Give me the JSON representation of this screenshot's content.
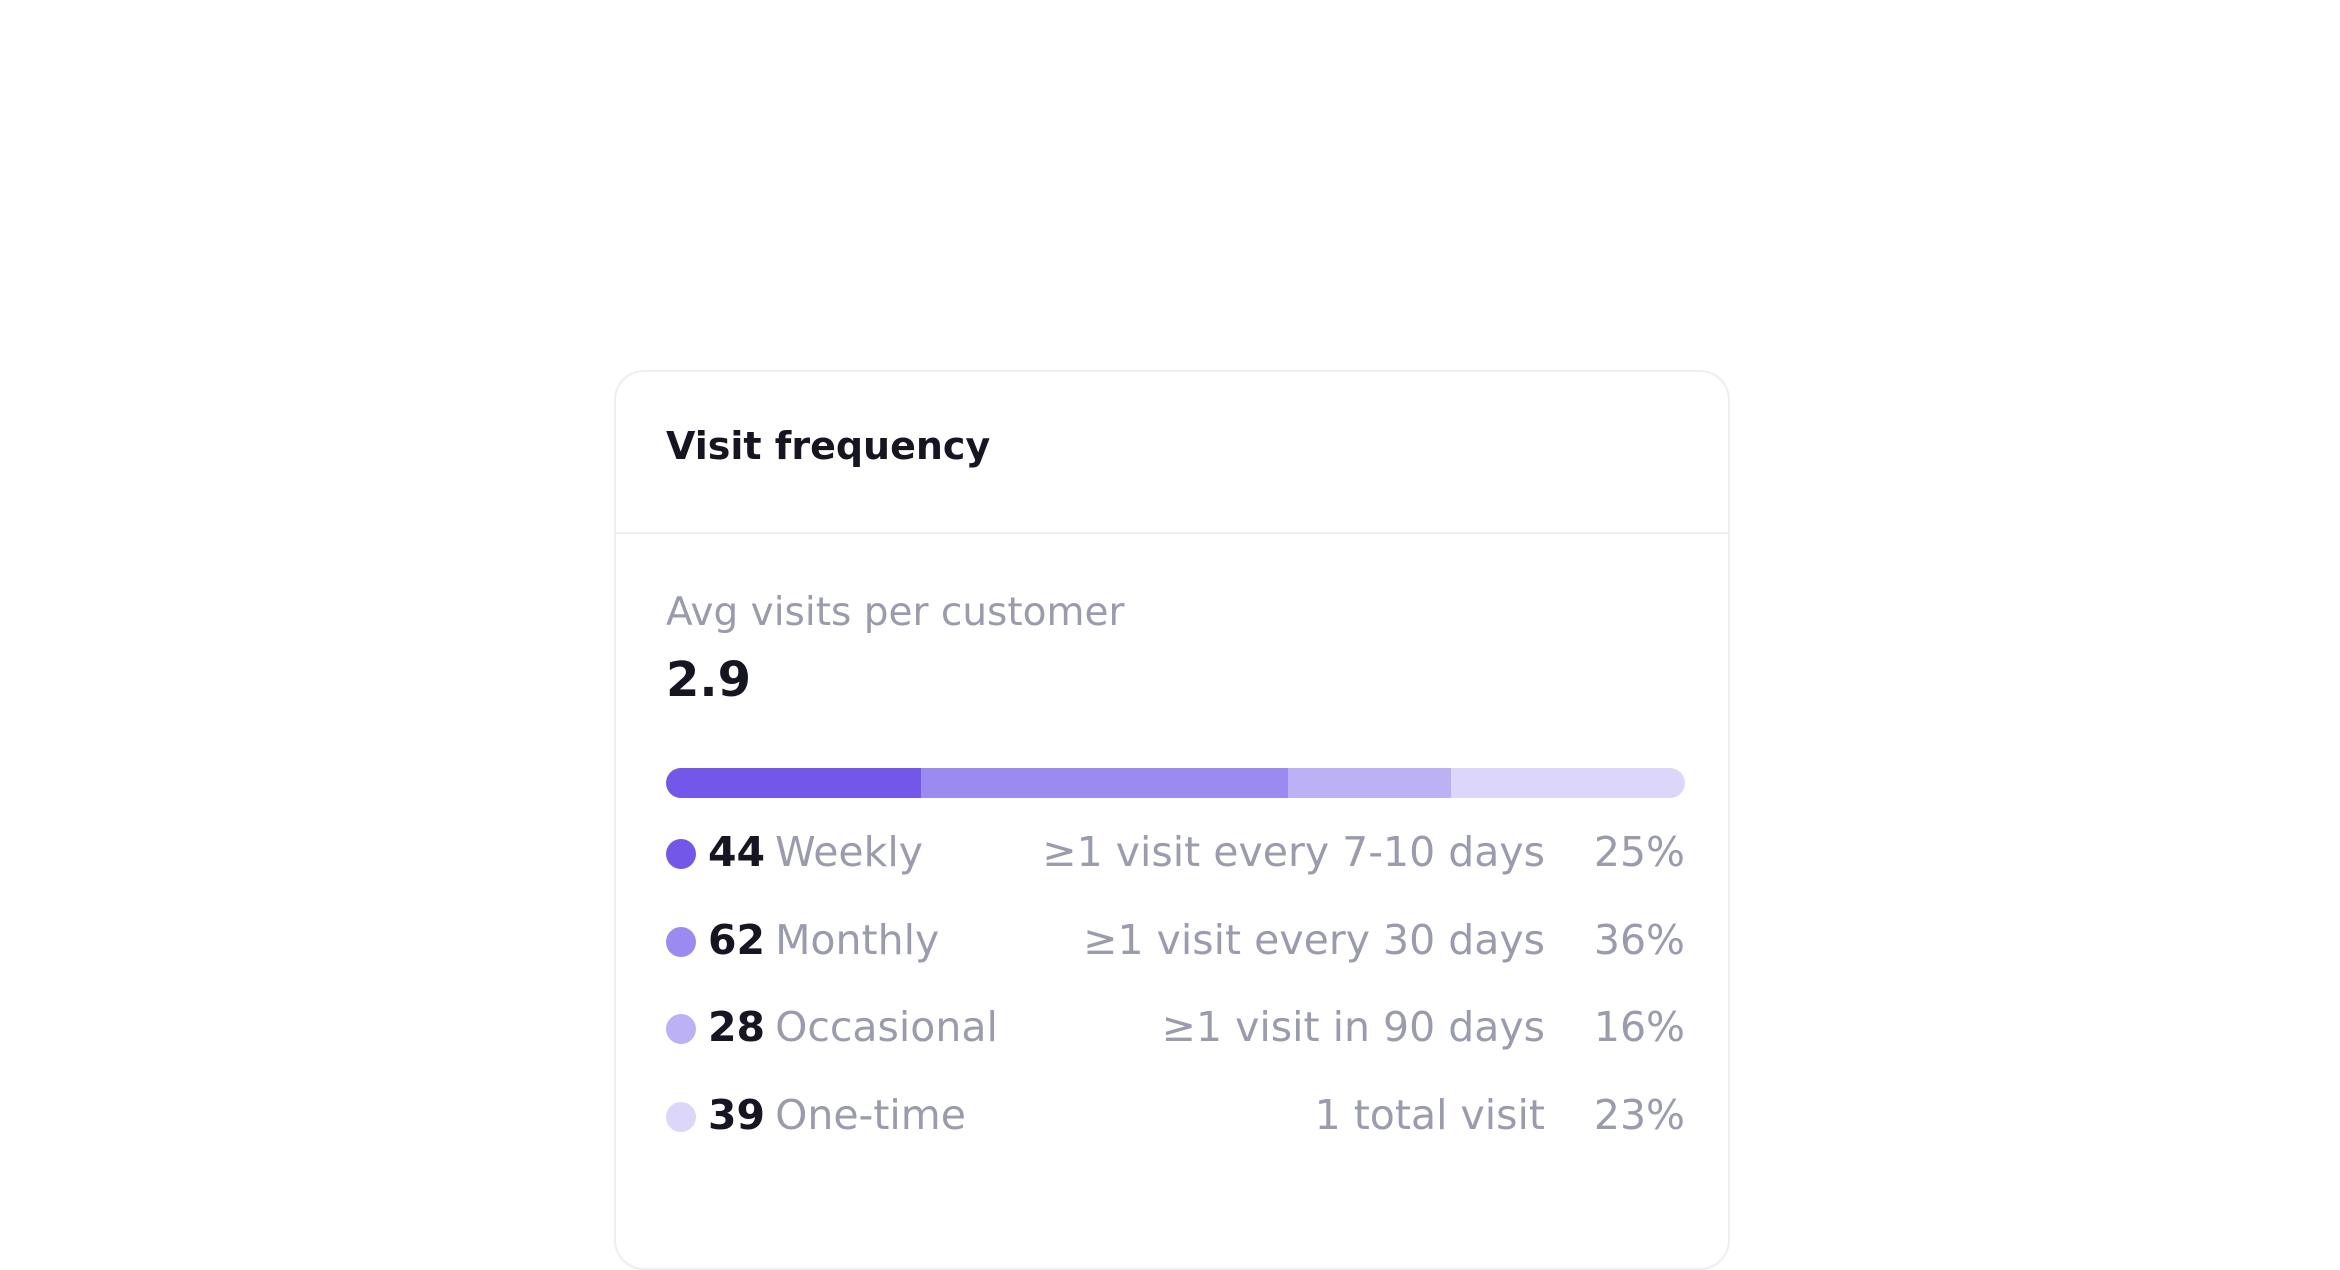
{
  "card": {
    "title": "Visit frequency",
    "metric_label": "Avg visits per customer",
    "metric_value": "2.9",
    "rows": [
      {
        "count": 44,
        "label": "Weekly",
        "description": "≥1 visit every 7-10 days",
        "share": 25,
        "share_label": "25%",
        "color": "#7357e8"
      },
      {
        "count": 62,
        "label": "Monthly",
        "description": "≥1 visit every 30 days",
        "share": 36,
        "share_label": "36%",
        "color": "#9b8af0"
      },
      {
        "count": 28,
        "label": "Occasional",
        "description": "≥1 visit in 90 days",
        "share": 16,
        "share_label": "16%",
        "color": "#bcb1f5"
      },
      {
        "count": 39,
        "label": "One-time",
        "description": "1 total visit",
        "share": 23,
        "share_label": "23%",
        "color": "#dcd7fa"
      }
    ]
  }
}
